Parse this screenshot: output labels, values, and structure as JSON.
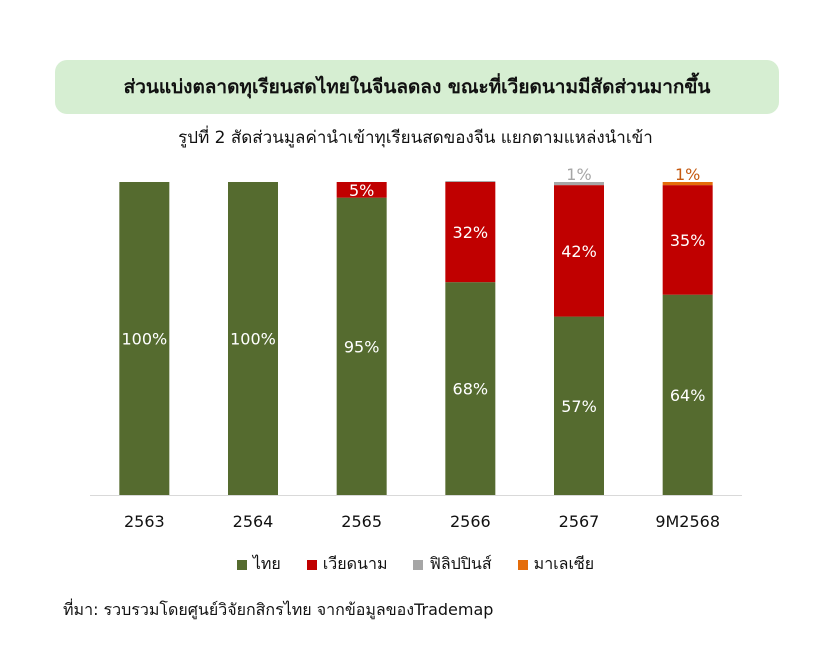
{
  "header": {
    "title": "ส่วนแบ่งตลาดทุเรียนสดไทยในจีนลดลง ขณะที่เวียดนามมีสัดส่วนมากขึ้น",
    "subtitle": "รูปที่ 2 สัดส่วนมูลค่านำเข้าทุเรียนสดของจีน แยกตามแหล่งนำเข้า"
  },
  "source": "ที่มา: รวบรวมโดยศูนย์วิจัยกสิกรไทย จากข้อมูลของTrademap",
  "chart_data": {
    "type": "bar",
    "stacked": true,
    "categories": [
      "2563",
      "2564",
      "2565",
      "2566",
      "2567",
      "9M2568"
    ],
    "series": [
      {
        "name": "ไทย",
        "color": "#556b2f",
        "values": [
          100,
          100,
          95,
          68,
          57,
          64
        ],
        "labels": [
          "100%",
          "100%",
          "95%",
          "68%",
          "57%",
          "64%"
        ],
        "label_color": "#ffffff"
      },
      {
        "name": "เวียดนาม",
        "color": "#c00000",
        "values": [
          0,
          0,
          5,
          32,
          42,
          35
        ],
        "labels": [
          "",
          "",
          "5%",
          "32%",
          "42%",
          "35%"
        ],
        "label_color": "#ffffff"
      },
      {
        "name": "ฟิลิปปินส์",
        "color": "#a6a6a6",
        "values": [
          0,
          0,
          0,
          0.3,
          1,
          0
        ],
        "labels": [
          "",
          "",
          "",
          "",
          "1%",
          ""
        ],
        "label_color": "#a6a6a6"
      },
      {
        "name": "มาเลเซีย",
        "color": "#e46c0a",
        "values": [
          0,
          0,
          0,
          0,
          0,
          1
        ],
        "labels": [
          "",
          "",
          "",
          "",
          "",
          "1%"
        ],
        "label_color": "#c55a11"
      }
    ],
    "ylim": [
      0,
      100
    ],
    "grid": false,
    "legend_position": "bottom"
  }
}
